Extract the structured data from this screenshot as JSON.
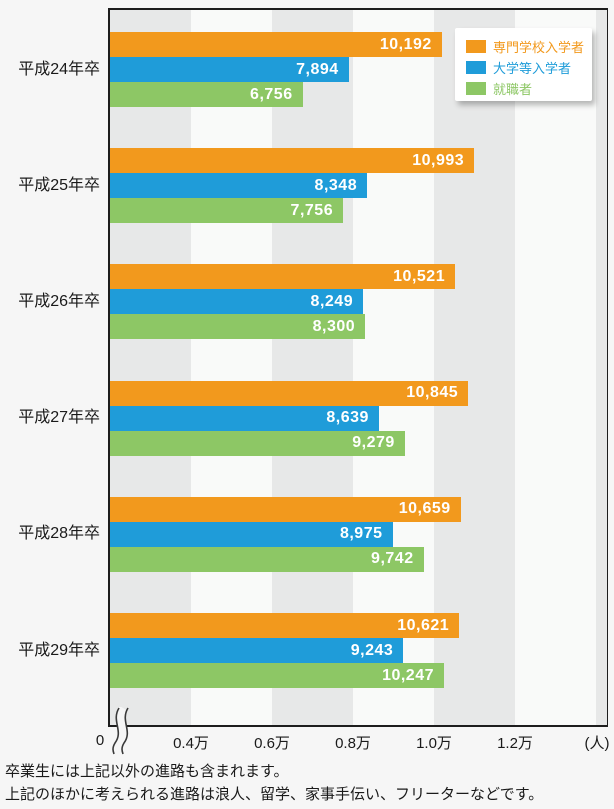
{
  "chart_data": {
    "type": "bar",
    "orientation": "horizontal",
    "title": "",
    "categories": [
      "平成24年卒",
      "平成25年卒",
      "平成26年卒",
      "平成27年卒",
      "平成28年卒",
      "平成29年卒"
    ],
    "series": [
      {
        "name": "専門学校入学者",
        "color": "#F2991D",
        "values": [
          10192,
          10993,
          10521,
          10845,
          10659,
          10621
        ]
      },
      {
        "name": "大学等入学者",
        "color": "#1F9CD9",
        "values": [
          7894,
          8348,
          8249,
          8639,
          8975,
          9243
        ]
      },
      {
        "name": "就職者",
        "color": "#8DC765",
        "values": [
          6756,
          7756,
          8300,
          9279,
          9742,
          10247
        ]
      }
    ],
    "value_labels": [
      [
        "10,192",
        "10,993",
        "10,521",
        "10,845",
        "10,659",
        "10,621"
      ],
      [
        "7,894",
        "8,348",
        "8,249",
        "8,639",
        "8,975",
        "9,243"
      ],
      [
        "6,756",
        "7,756",
        "8,300",
        "9,279",
        "9,742",
        "10,247"
      ]
    ],
    "x_axis": {
      "tick_values": [
        0,
        4000,
        6000,
        8000,
        10000,
        12000
      ],
      "tick_labels": [
        "0",
        "0.4万",
        "0.6万",
        "0.8万",
        "1.0万",
        "1.2万"
      ],
      "unit": "(人)",
      "has_break": true,
      "xlim": [
        0,
        13000
      ]
    },
    "legend_position": "top-right",
    "background_bands": true
  },
  "footnotes": [
    "卒業生には上記以外の進路も含まれます。",
    "上記のほかに考えられる進路は浪人、留学、家事手伝い、フリーターなどです。"
  ]
}
